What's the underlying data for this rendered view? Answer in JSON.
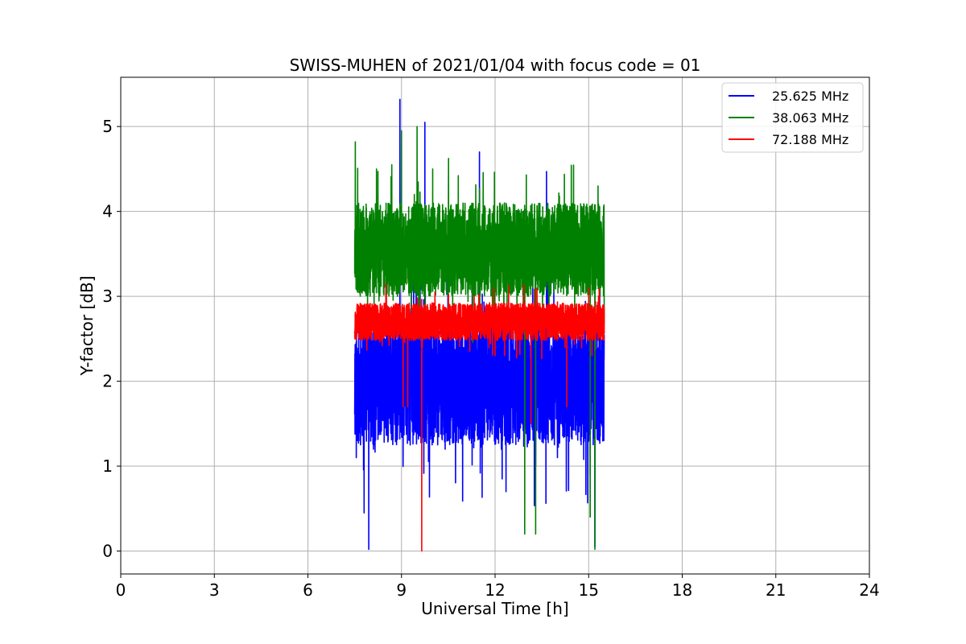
{
  "chart_data": {
    "type": "line",
    "title": "SWISS-MUHEN of 2021/01/04 with focus code = 01",
    "xlabel": "Universal Time [h]",
    "ylabel": "Y-factor [dB]",
    "xlim": [
      0,
      24
    ],
    "ylim": [
      -0.27,
      5.58
    ],
    "xticks": [
      0,
      3,
      6,
      9,
      12,
      15,
      18,
      21,
      24
    ],
    "xtick_labels": [
      "0",
      "3",
      "6",
      "9",
      "12",
      "15",
      "18",
      "21",
      "24"
    ],
    "yticks": [
      0,
      1,
      2,
      3,
      4,
      5
    ],
    "ytick_labels": [
      "0",
      "1",
      "2",
      "3",
      "4",
      "5"
    ],
    "grid": true,
    "legend_position": "top-right",
    "series": [
      {
        "name": "25.625 MHz",
        "color": "#0000ff",
        "x_range": [
          7.5,
          15.5
        ],
        "base": 2.0,
        "spread": 0.75,
        "anchors": [
          [
            7.55,
            1.1
          ],
          [
            7.8,
            0.45
          ],
          [
            7.95,
            0.02
          ],
          [
            8.1,
            1.2
          ],
          [
            8.5,
            2.2
          ],
          [
            8.95,
            5.32
          ],
          [
            9.1,
            2.3
          ],
          [
            9.2,
            1.8
          ],
          [
            9.75,
            5.05
          ],
          [
            10.05,
            1.35
          ],
          [
            10.4,
            1.2
          ],
          [
            11.0,
            1.5
          ],
          [
            11.5,
            4.7
          ],
          [
            12.2,
            1.2
          ],
          [
            12.35,
            0.7
          ],
          [
            13.3,
            1.0
          ],
          [
            13.65,
            4.47
          ],
          [
            14.0,
            1.1
          ],
          [
            15.05,
            0.9
          ],
          [
            15.2,
            0.05
          ]
        ],
        "values_note_free": true
      },
      {
        "name": "38.063 MHz",
        "color": "#008000",
        "x_range": [
          7.5,
          15.5
        ],
        "base": 3.55,
        "spread": 0.55,
        "anchors": [
          [
            7.52,
            4.82
          ],
          [
            8.2,
            4.5
          ],
          [
            9.0,
            4.95
          ],
          [
            9.5,
            5.0
          ],
          [
            10.0,
            4.5
          ],
          [
            11.0,
            4.0
          ],
          [
            12.3,
            4.1
          ],
          [
            12.95,
            0.2
          ],
          [
            13.3,
            0.2
          ],
          [
            13.0,
            4.43
          ],
          [
            14.1,
            3.3
          ],
          [
            15.05,
            0.4
          ],
          [
            15.2,
            0.02
          ],
          [
            15.3,
            4.3
          ]
        ]
      },
      {
        "name": "72.188 MHz",
        "color": "#ff0000",
        "x_range": [
          7.5,
          15.5
        ],
        "base": 2.7,
        "spread": 0.22,
        "anchors": [
          [
            8.5,
            3.15
          ],
          [
            9.05,
            1.7
          ],
          [
            9.2,
            1.7
          ],
          [
            9.65,
            0.0
          ],
          [
            13.15,
            1.5
          ],
          [
            14.3,
            1.7
          ],
          [
            15.0,
            3.1
          ]
        ]
      }
    ]
  }
}
